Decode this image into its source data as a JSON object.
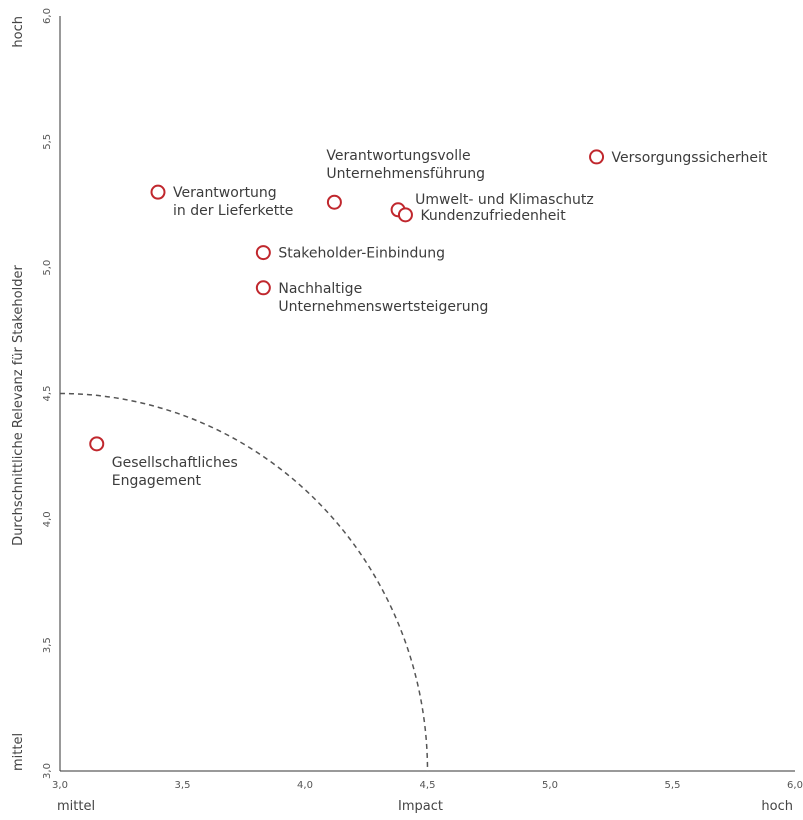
{
  "chart_data": {
    "type": "scatter",
    "xlabel": "Impact",
    "ylabel": "Durchschnittliche Relevanz für Stakeholder",
    "xlim": [
      3.0,
      6.0
    ],
    "ylim": [
      3.0,
      6.0
    ],
    "x_ticks": [
      "3,0",
      "3,5",
      "4,0",
      "4,5",
      "5,0",
      "5,5",
      "6,0"
    ],
    "y_ticks": [
      "3,0",
      "3,5",
      "4,0",
      "4,5",
      "5,0",
      "5,5",
      "6,0"
    ],
    "x_end_labels": {
      "low": "mittel",
      "high": "hoch"
    },
    "y_end_labels": {
      "low": "mittel",
      "high": "hoch"
    },
    "threshold_arc": {
      "center": [
        3.0,
        3.0
      ],
      "radius": 1.5
    },
    "grid": false,
    "marker_color": "#c0272d",
    "axis_color": "#333333",
    "points": [
      {
        "x": 3.15,
        "y": 4.3,
        "lines": [
          "Gesellschaftliches",
          "Engagement"
        ],
        "label_pos": "below-right"
      },
      {
        "x": 3.4,
        "y": 5.3,
        "lines": [
          "Verantwortung",
          "in der Lieferkette"
        ],
        "label_pos": "right"
      },
      {
        "x": 3.83,
        "y": 5.06,
        "lines": [
          "Stakeholder-Einbindung"
        ],
        "label_pos": "right"
      },
      {
        "x": 3.83,
        "y": 4.92,
        "lines": [
          "Nachhaltige",
          "Unternehmenswertsteigerung"
        ],
        "label_pos": "right"
      },
      {
        "x": 4.12,
        "y": 5.26,
        "lines": [
          "Verantwortungsvolle",
          "Unternehmensführung"
        ],
        "label_pos": "above"
      },
      {
        "x": 4.38,
        "y": 5.23,
        "lines": [
          "Umwelt- und Klimaschutz"
        ],
        "label_pos": "upper-right"
      },
      {
        "x": 4.41,
        "y": 5.21,
        "lines": [
          "Kundenzufriedenheit"
        ],
        "label_pos": "right"
      },
      {
        "x": 5.19,
        "y": 5.44,
        "lines": [
          "Versorgungssicherheit"
        ],
        "label_pos": "right"
      }
    ]
  }
}
